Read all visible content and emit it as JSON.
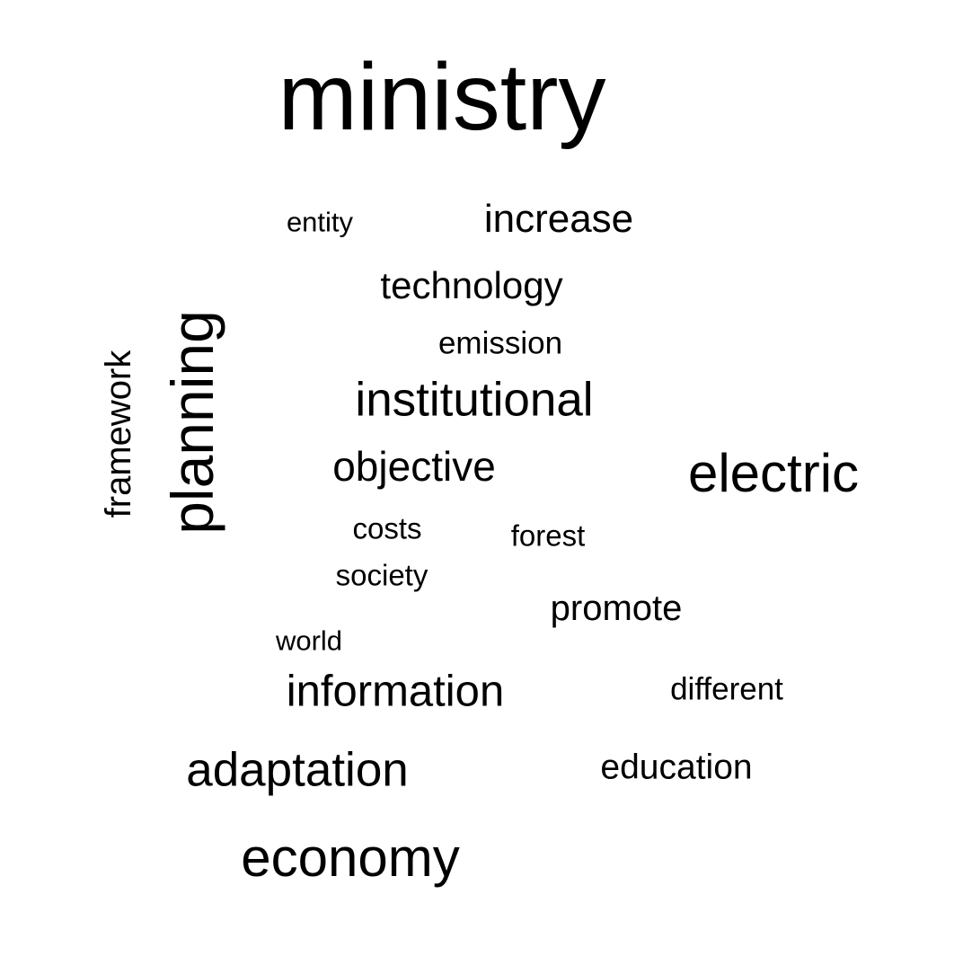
{
  "text_color": "#000000",
  "background_color": "#ffffff",
  "words": [
    {
      "text": "ministry",
      "orientation": "horizontal"
    },
    {
      "text": "entity",
      "orientation": "horizontal"
    },
    {
      "text": "increase",
      "orientation": "horizontal"
    },
    {
      "text": "technology",
      "orientation": "horizontal"
    },
    {
      "text": "emission",
      "orientation": "horizontal"
    },
    {
      "text": "framework",
      "orientation": "vertical"
    },
    {
      "text": "planning",
      "orientation": "vertical"
    },
    {
      "text": "institutional",
      "orientation": "horizontal"
    },
    {
      "text": "objective",
      "orientation": "horizontal"
    },
    {
      "text": "electric",
      "orientation": "horizontal"
    },
    {
      "text": "costs",
      "orientation": "horizontal"
    },
    {
      "text": "forest",
      "orientation": "horizontal"
    },
    {
      "text": "society",
      "orientation": "horizontal"
    },
    {
      "text": "promote",
      "orientation": "horizontal"
    },
    {
      "text": "world",
      "orientation": "horizontal"
    },
    {
      "text": "information",
      "orientation": "horizontal"
    },
    {
      "text": "different",
      "orientation": "horizontal"
    },
    {
      "text": "adaptation",
      "orientation": "horizontal"
    },
    {
      "text": "education",
      "orientation": "horizontal"
    },
    {
      "text": "economy",
      "orientation": "horizontal"
    }
  ]
}
